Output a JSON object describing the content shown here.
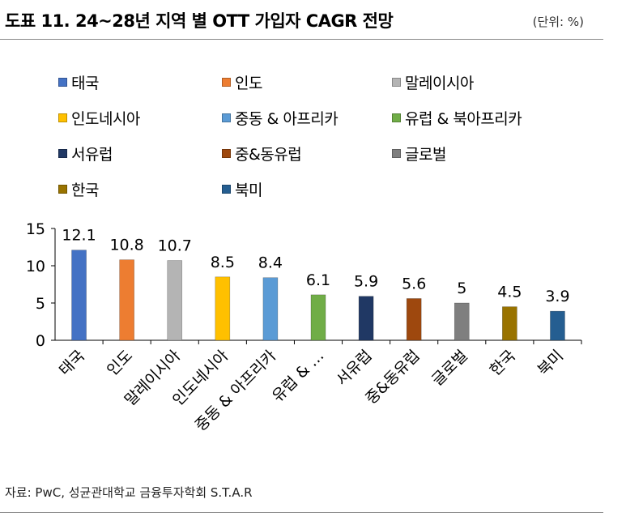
{
  "title": "도표 11. 24~28년 지역 별 OTT 가입자 CAGR 전망",
  "unit": "(단위: %)",
  "source": "자료: PwC, 성균관대학교 금융투자학회 S.T.A.R",
  "chart_data": {
    "type": "bar",
    "categories": [
      "태국",
      "인도",
      "말레이시아",
      "인도네시아",
      "중동 & 아프리카",
      "유럽 & …",
      "서유럽",
      "중&동유럽",
      "글로벌",
      "한국",
      "북미"
    ],
    "legend_labels": [
      "태국",
      "인도",
      "말레이시아",
      "인도네시아",
      "중동 & 아프리카",
      "유럽 & 북아프리카",
      "서유럽",
      "중&동유럽",
      "글로벌",
      "한국",
      "북미"
    ],
    "values": [
      12.1,
      10.8,
      10.7,
      8.5,
      8.4,
      6.1,
      5.9,
      5.6,
      5,
      4.5,
      3.9
    ],
    "value_labels": [
      "12.1",
      "10.8",
      "10.7",
      "8.5",
      "8.4",
      "6.1",
      "5.9",
      "5.6",
      "5",
      "4.5",
      "3.9"
    ],
    "colors": [
      "#4472c4",
      "#ed7d31",
      "#b4b4b4",
      "#ffc000",
      "#5b9bd5",
      "#70ad47",
      "#203864",
      "#9e480e",
      "#7f7f7f",
      "#997300",
      "#255e91"
    ],
    "yticks": [
      "0",
      "5",
      "10",
      "15"
    ],
    "ylim": [
      0,
      15
    ],
    "legend_position": "top",
    "grid": false
  }
}
